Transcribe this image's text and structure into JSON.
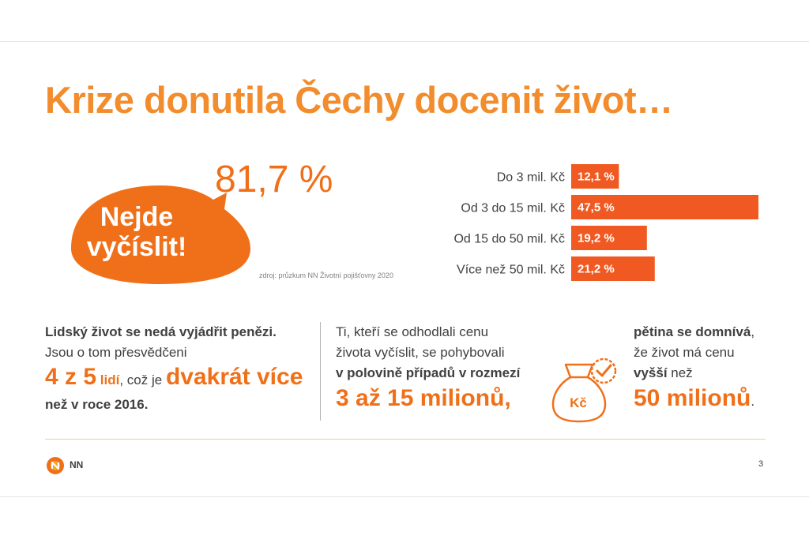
{
  "title": "Krize donutila Čechy docenit život…",
  "bubble": {
    "line1": "Nejde",
    "line2": "vyčíslit!"
  },
  "headline_pct": "81,7 %",
  "source": "zdroj: průzkum NN Životní pojišťovny 2020",
  "colors": {
    "orange": "#f07019",
    "bar": "#f05a22",
    "title": "#f28c2c"
  },
  "chart_data": {
    "type": "bar",
    "orientation": "horizontal",
    "categories": [
      "Do 3 mil. Kč",
      "Od 3 do 15 mil. Kč",
      "Od 15 do 50 mil. Kč",
      "Více než 50 mil. Kč"
    ],
    "values": [
      12.1,
      47.5,
      19.2,
      21.2
    ],
    "value_labels": [
      "12,1 %",
      "47,5 %",
      "19,2 %",
      "21,2 %"
    ],
    "xlim": [
      0,
      47.5
    ]
  },
  "col1": {
    "bold1": "Lidský život se nedá vyjádřit penězi.",
    "text1": "Jsou o tom přesvědčeni",
    "big1": "4 z 5",
    "bold2": "lidí",
    "text2": ", což je",
    "big2": "dvakrát více",
    "bold3": "než v roce 2016."
  },
  "col2": {
    "text1": "Ti, kteří se odhodlali cenu",
    "text2": "života vyčíslit, se pohybovali",
    "bold1": "v polovině případů v rozmezí",
    "big1": "3 až 15 milionů,"
  },
  "col3": {
    "bold1": "pětina se domnívá",
    "text1": ",",
    "text2": "že život má cenu",
    "bold2": "vyšší",
    "text3": " než",
    "big1": "50 milionů",
    "text4": "."
  },
  "bag_icon": {
    "name": "money-bag-check-icon",
    "label": "Kč"
  },
  "footer": {
    "logo_text": "NN",
    "page_number": "3"
  }
}
